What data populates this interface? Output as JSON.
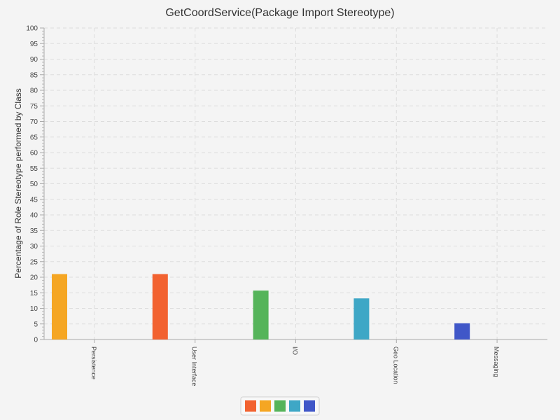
{
  "chart_data": {
    "type": "bar",
    "title": "GetCoordService(Package Import Stereotype)",
    "ylabel": "Percentage of Role Stereotype performed by Class",
    "xlabel": "",
    "ylim": [
      0,
      100
    ],
    "y_major_step": 5,
    "y_minor_step": 1,
    "grid": true,
    "legend_position": "bottom-center",
    "categories": [
      "Persistence",
      "User Interface",
      "I/O",
      "Geo Location",
      "Messaging"
    ],
    "series": [
      {
        "color": "#f26230",
        "values": [
          0,
          21,
          0,
          0,
          0
        ]
      },
      {
        "color": "#f5a623",
        "values": [
          21,
          0,
          0,
          0,
          0
        ]
      },
      {
        "color": "#55b45a",
        "values": [
          0,
          0,
          15.7,
          0,
          0
        ]
      },
      {
        "color": "#3ea7c6",
        "values": [
          0,
          0,
          0,
          13.2,
          0
        ]
      },
      {
        "color": "#4057c8",
        "values": [
          0,
          0,
          0,
          0,
          5.2
        ]
      }
    ]
  }
}
